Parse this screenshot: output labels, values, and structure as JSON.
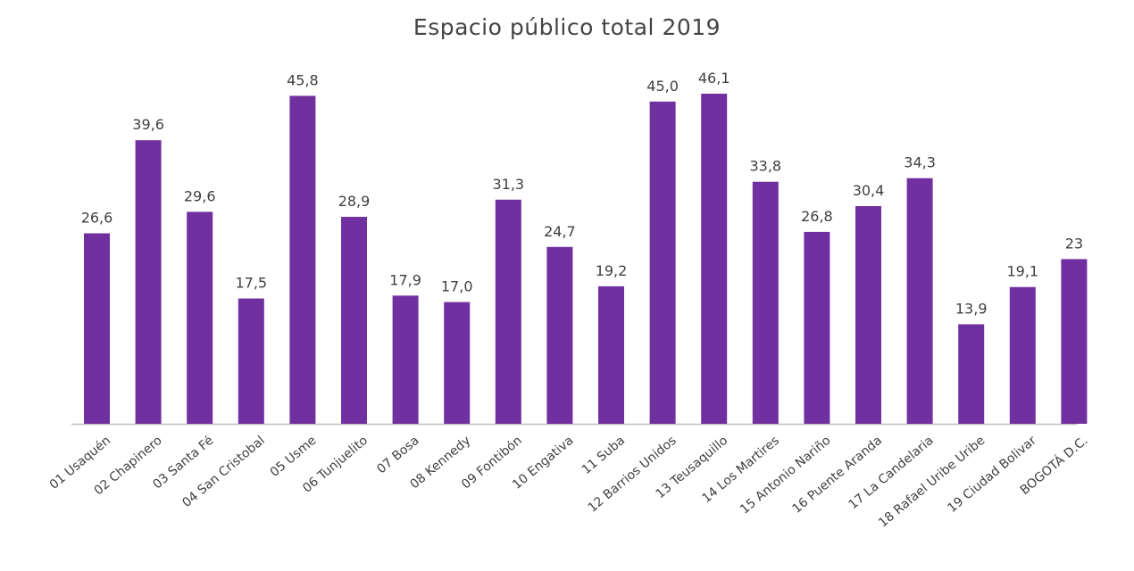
{
  "chart_data": {
    "type": "bar",
    "title": "Espacio público total 2019",
    "xlabel": "",
    "ylabel": "",
    "categories": [
      "01 Usaquén",
      "02 Chapinero",
      "03 Santa Fé",
      "04 San Cristobal",
      "05 Usme",
      "06 Tunjuelito",
      "07 Bosa",
      "08 Kennedy",
      "09 Fontibón",
      "10 Engativa",
      "11 Suba",
      "12 Barrios Unidos",
      "13 Teusaquillo",
      "14 Los Martires",
      "15 Antonio Nariño",
      "16 Puente Aranda",
      "17 La Candelaria",
      "18 Rafael Uribe Uribe",
      "19 Ciudad Bolivar",
      "BOGOTÁ D.C."
    ],
    "values": [
      26.6,
      39.6,
      29.6,
      17.5,
      45.8,
      28.9,
      17.9,
      17.0,
      31.3,
      24.7,
      19.2,
      45.0,
      46.1,
      33.8,
      26.8,
      30.4,
      34.3,
      13.9,
      19.1,
      23.0
    ],
    "labels": [
      "26,6",
      "39,6",
      "29,6",
      "17,5",
      "45,8",
      "28,9",
      "17,9",
      "17,0",
      "31,3",
      "24,7",
      "19,2",
      "45,0",
      "46,1",
      "33,8",
      "26,8",
      "30,4",
      "34,3",
      "13,9",
      "19,1",
      "23"
    ],
    "ylim": [
      0,
      46.1
    ],
    "grid": false,
    "legend": "none",
    "bar_color": "#7030A0",
    "axis_color": "#BFBFBF",
    "text_color": "#404040"
  }
}
